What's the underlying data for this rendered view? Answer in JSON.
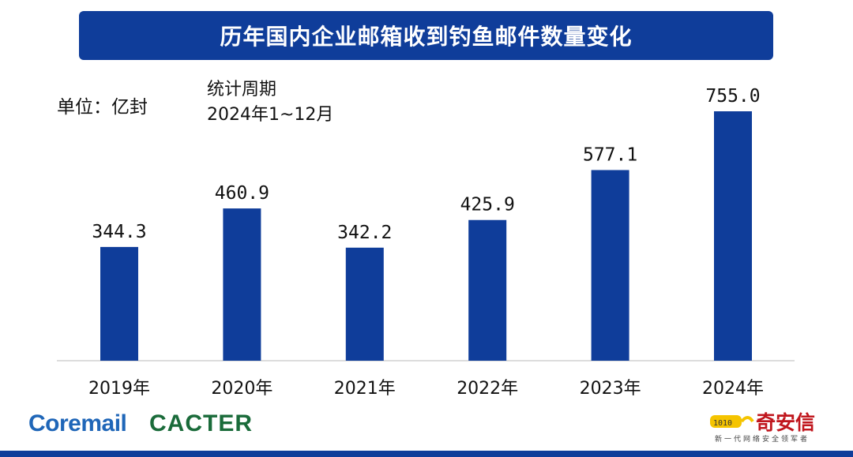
{
  "title": "历年国内企业邮箱收到钓鱼邮件数量变化",
  "unit_label": "单位：亿封",
  "period": {
    "label": "统计周期",
    "range": "2024年1~12月"
  },
  "chart_data": {
    "type": "bar",
    "categories": [
      "2019年",
      "2020年",
      "2021年",
      "2022年",
      "2023年",
      "2024年"
    ],
    "values": [
      344.3,
      460.9,
      342.2,
      425.9,
      577.1,
      755.0
    ],
    "value_labels": [
      "344.3",
      "460.9",
      "342.2",
      "425.9",
      "577.1",
      "755.0"
    ],
    "title": "历年国内企业邮箱收到钓鱼邮件数量变化",
    "ylabel": "单位：亿封",
    "xlabel": "",
    "ylim": [
      0,
      800
    ],
    "grid": false,
    "bar_color": "#0f3d9a"
  },
  "footer": {
    "coremail": "Coremail",
    "cacter": "CACTER",
    "qax_name": "奇安信",
    "qax_slogan": "新一代网络安全领军者"
  },
  "colors": {
    "primary": "#0f3d9a",
    "coremail": "#1f66b8",
    "cacter": "#1a6b3a",
    "qax": "#c0161d"
  }
}
